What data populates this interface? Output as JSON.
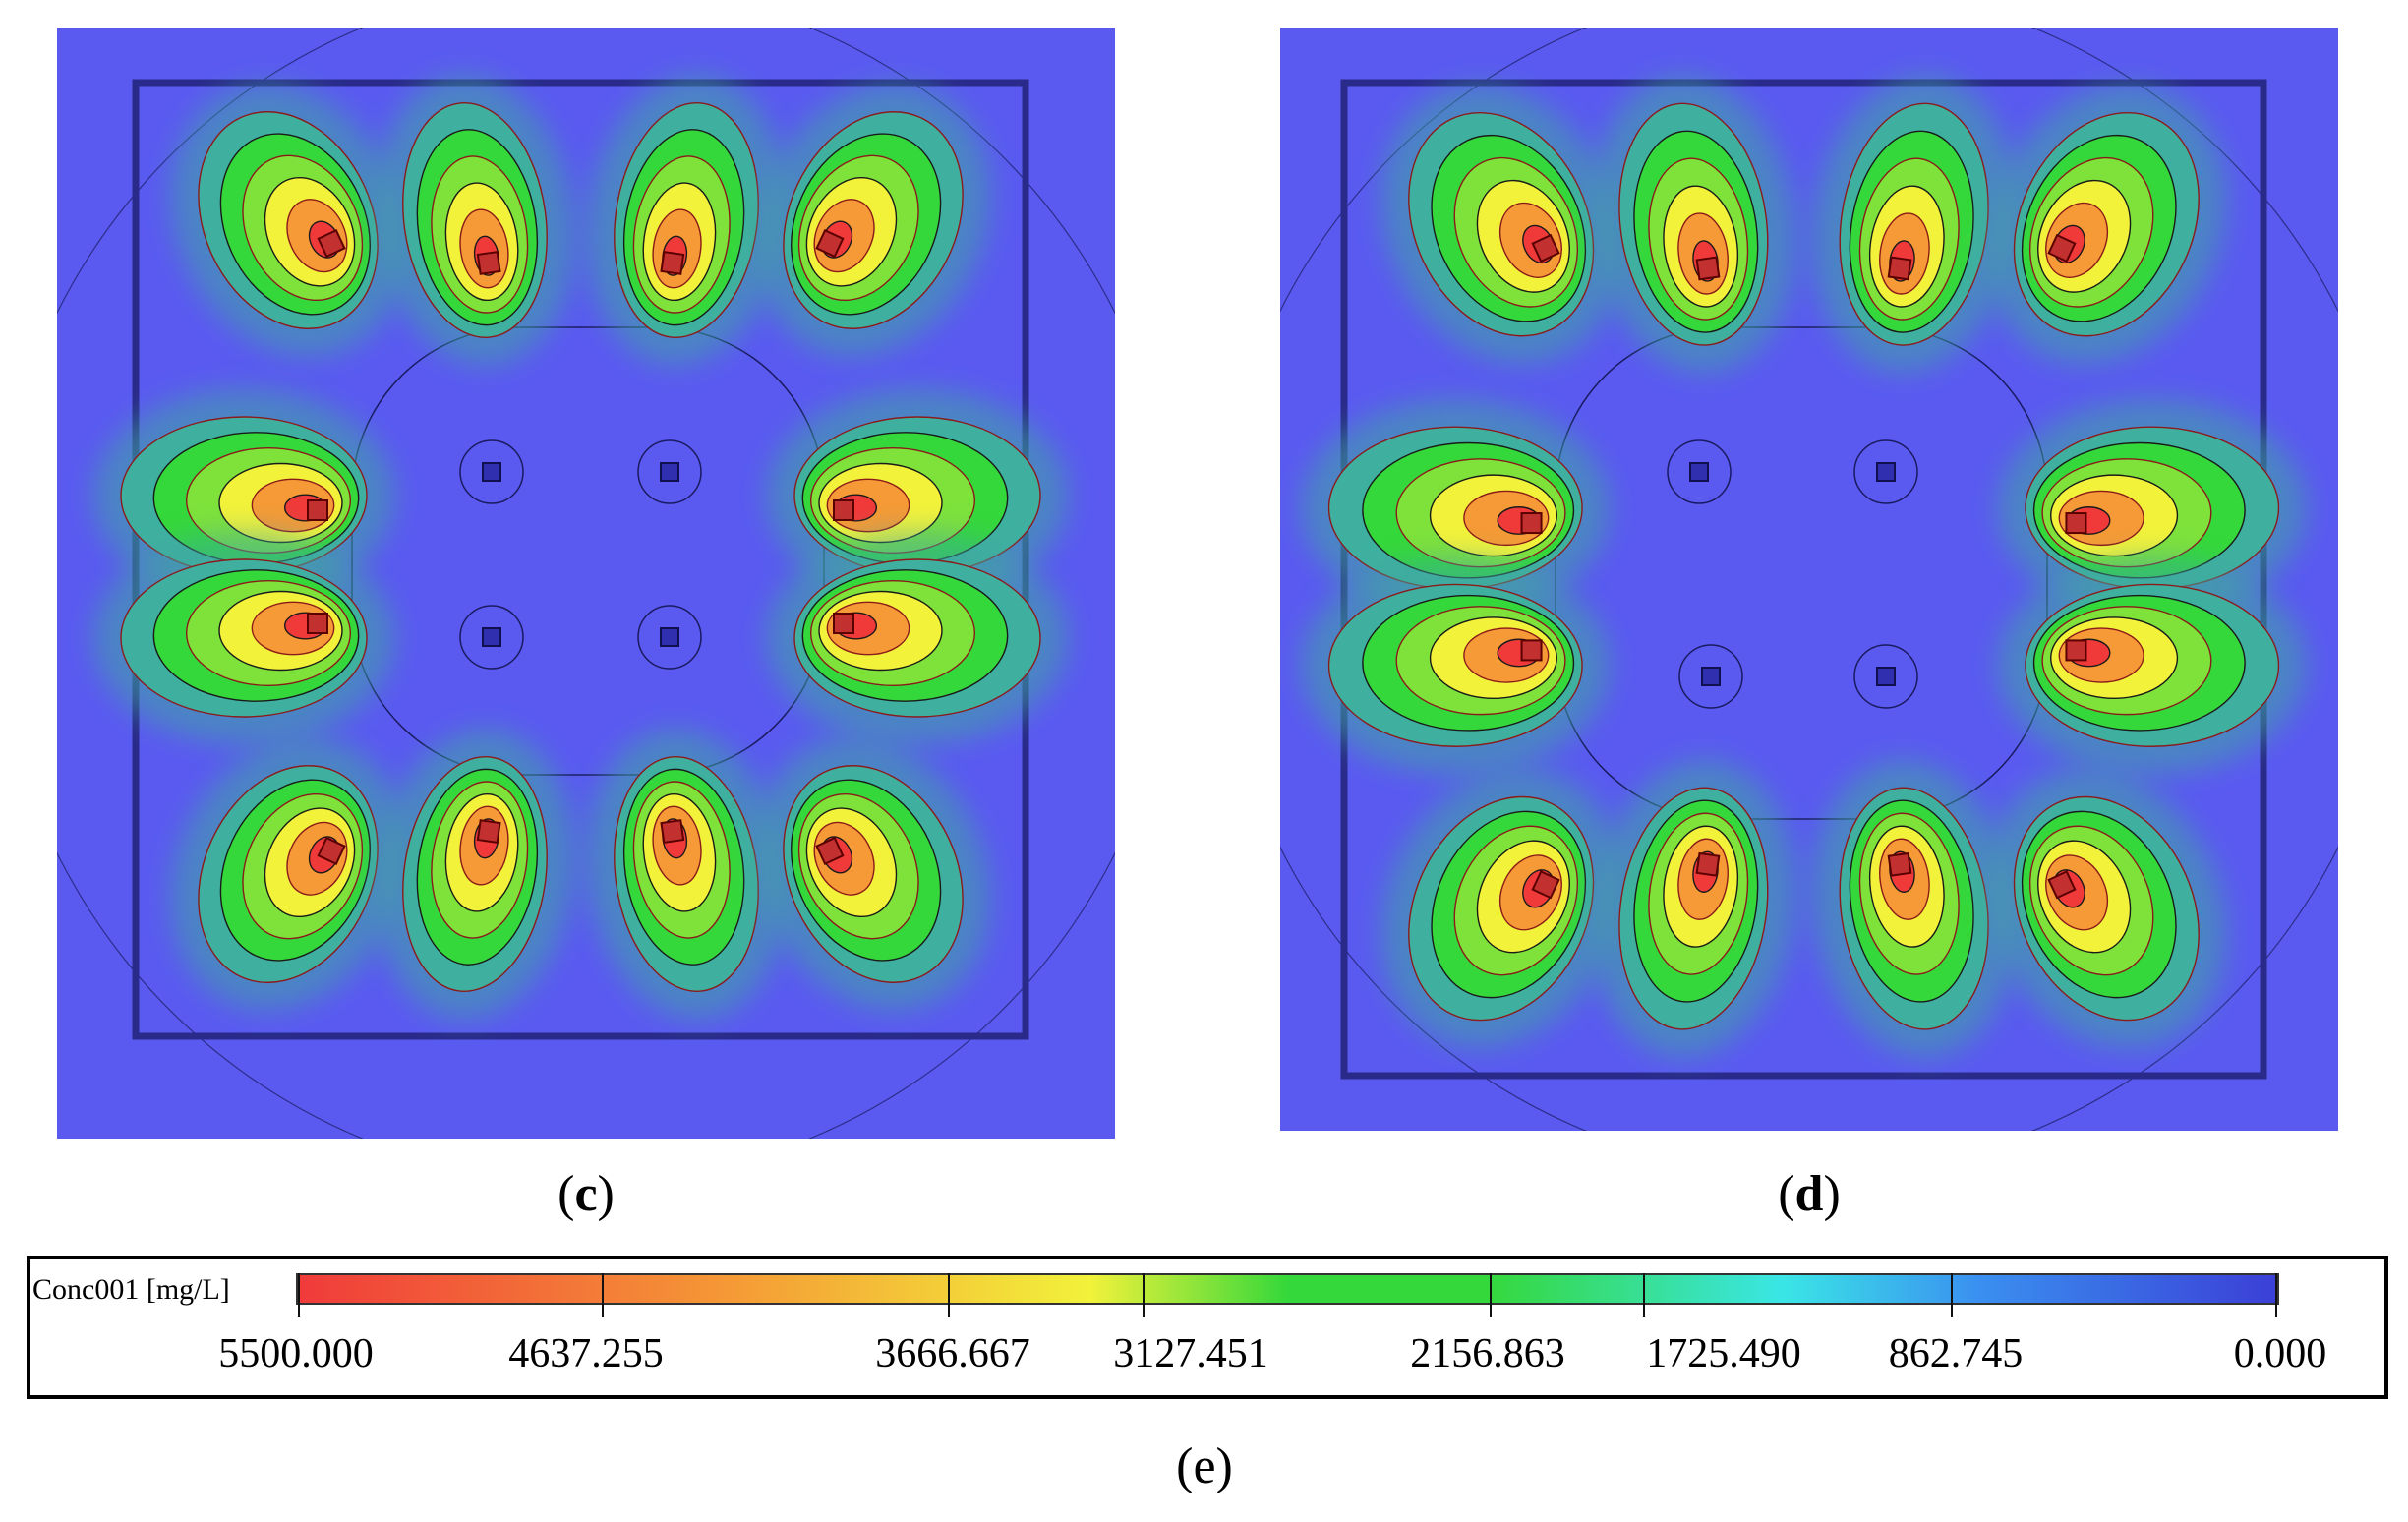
{
  "panels": [
    {
      "id": "c",
      "caption_letter": "c",
      "caption_open": "(",
      "caption_close": ")"
    },
    {
      "id": "d",
      "caption_letter": "d",
      "caption_open": "(",
      "caption_close": ")"
    }
  ],
  "legend": {
    "title": "Conc001 [mg/L]",
    "caption": "(e)",
    "ticks": [
      "5500.000",
      "4637.255",
      "3666.667",
      "3127.451",
      "2156.863",
      "1725.490",
      "862.745",
      "0.000"
    ],
    "colors": {
      "max": "#f03a3a",
      "orange": "#f59a36",
      "yellow": "#f2f23a",
      "green": "#35d83a",
      "cyan": "#3ae6e6",
      "blue": "#3a8ff0",
      "min": "#3b3fd6",
      "background": "#5a5af0",
      "contour_red": "#8b1a1a",
      "contour_dark": "#1a1a60"
    }
  }
}
